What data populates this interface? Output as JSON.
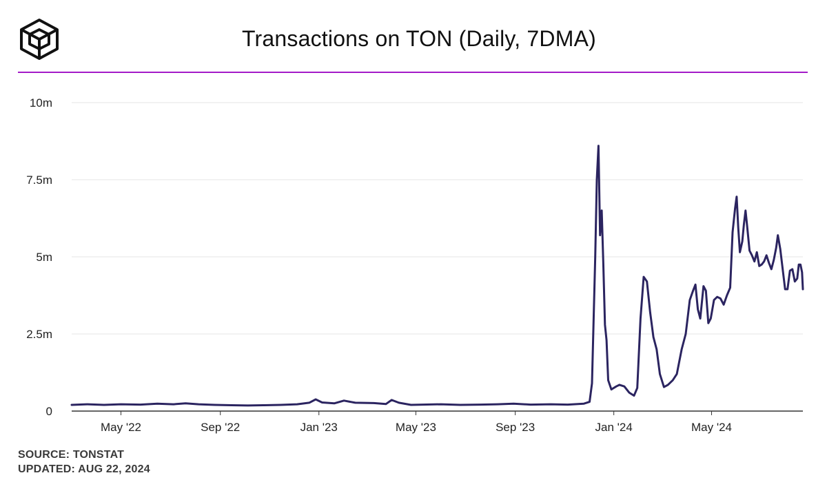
{
  "header": {
    "logo_icon": "cube-outline-icon",
    "title": "Transactions on TON (Daily, 7DMA)",
    "accent_color": "#a31ac8"
  },
  "footer": {
    "source": "SOURCE: TONSTAT",
    "updated": "UPDATED: AUG 22, 2024"
  },
  "chart_data": {
    "type": "line",
    "title": "Transactions on TON (Daily, 7DMA)",
    "xlabel": "",
    "ylabel": "",
    "xlim": [
      "2022-03-01",
      "2024-08-22"
    ],
    "ylim": [
      0,
      10
    ],
    "y_unit": "m",
    "y_ticks": [
      {
        "value": 0,
        "label": "0"
      },
      {
        "value": 2.5,
        "label": "2.5m"
      },
      {
        "value": 5,
        "label": "5m"
      },
      {
        "value": 7.5,
        "label": "7.5m"
      },
      {
        "value": 10,
        "label": "10m"
      }
    ],
    "x_ticks": [
      {
        "date": "2022-05-01",
        "label": "May '22"
      },
      {
        "date": "2022-09-01",
        "label": "Sep '22"
      },
      {
        "date": "2023-01-01",
        "label": "Jan '23"
      },
      {
        "date": "2023-05-01",
        "label": "May '23"
      },
      {
        "date": "2023-09-01",
        "label": "Sep '23"
      },
      {
        "date": "2024-01-01",
        "label": "Jan '24"
      },
      {
        "date": "2024-05-01",
        "label": "May '24"
      }
    ],
    "grid": "horizontal",
    "line_color": "#2b2460",
    "series": [
      {
        "points": [
          [
            "2022-03-01",
            0.2
          ],
          [
            "2022-03-20",
            0.22
          ],
          [
            "2022-04-10",
            0.2
          ],
          [
            "2022-05-01",
            0.22
          ],
          [
            "2022-05-25",
            0.21
          ],
          [
            "2022-06-15",
            0.24
          ],
          [
            "2022-07-05",
            0.22
          ],
          [
            "2022-07-20",
            0.25
          ],
          [
            "2022-08-05",
            0.22
          ],
          [
            "2022-08-25",
            0.2
          ],
          [
            "2022-09-15",
            0.19
          ],
          [
            "2022-10-05",
            0.18
          ],
          [
            "2022-10-25",
            0.19
          ],
          [
            "2022-11-15",
            0.2
          ],
          [
            "2022-12-05",
            0.22
          ],
          [
            "2022-12-20",
            0.27
          ],
          [
            "2022-12-28",
            0.38
          ],
          [
            "2023-01-05",
            0.28
          ],
          [
            "2023-01-20",
            0.25
          ],
          [
            "2023-02-01",
            0.34
          ],
          [
            "2023-02-15",
            0.27
          ],
          [
            "2023-03-10",
            0.26
          ],
          [
            "2023-03-25",
            0.23
          ],
          [
            "2023-04-01",
            0.36
          ],
          [
            "2023-04-10",
            0.27
          ],
          [
            "2023-04-25",
            0.2
          ],
          [
            "2023-05-10",
            0.21
          ],
          [
            "2023-06-01",
            0.22
          ],
          [
            "2023-06-25",
            0.2
          ],
          [
            "2023-07-20",
            0.21
          ],
          [
            "2023-08-10",
            0.22
          ],
          [
            "2023-08-30",
            0.24
          ],
          [
            "2023-09-20",
            0.21
          ],
          [
            "2023-10-15",
            0.22
          ],
          [
            "2023-11-05",
            0.21
          ],
          [
            "2023-11-25",
            0.24
          ],
          [
            "2023-12-02",
            0.3
          ],
          [
            "2023-12-05",
            0.9
          ],
          [
            "2023-12-07",
            3.0
          ],
          [
            "2023-12-09",
            5.0
          ],
          [
            "2023-12-11",
            7.5
          ],
          [
            "2023-12-13",
            8.6
          ],
          [
            "2023-12-15",
            5.7
          ],
          [
            "2023-12-17",
            6.5
          ],
          [
            "2023-12-19",
            4.8
          ],
          [
            "2023-12-21",
            2.8
          ],
          [
            "2023-12-23",
            2.3
          ],
          [
            "2023-12-25",
            1.0
          ],
          [
            "2023-12-29",
            0.7
          ],
          [
            "2024-01-04",
            0.8
          ],
          [
            "2024-01-08",
            0.85
          ],
          [
            "2024-01-14",
            0.8
          ],
          [
            "2024-01-20",
            0.6
          ],
          [
            "2024-01-26",
            0.5
          ],
          [
            "2024-01-30",
            0.75
          ],
          [
            "2024-02-03",
            3.0
          ],
          [
            "2024-02-07",
            4.35
          ],
          [
            "2024-02-11",
            4.2
          ],
          [
            "2024-02-15",
            3.2
          ],
          [
            "2024-02-19",
            2.4
          ],
          [
            "2024-02-23",
            2.0
          ],
          [
            "2024-02-27",
            1.2
          ],
          [
            "2024-03-03",
            0.78
          ],
          [
            "2024-03-08",
            0.85
          ],
          [
            "2024-03-14",
            1.0
          ],
          [
            "2024-03-19",
            1.2
          ],
          [
            "2024-03-25",
            2.0
          ],
          [
            "2024-03-30",
            2.5
          ],
          [
            "2024-04-04",
            3.6
          ],
          [
            "2024-04-08",
            3.9
          ],
          [
            "2024-04-11",
            4.1
          ],
          [
            "2024-04-14",
            3.3
          ],
          [
            "2024-04-17",
            3.0
          ],
          [
            "2024-04-21",
            4.05
          ],
          [
            "2024-04-24",
            3.9
          ],
          [
            "2024-04-27",
            2.85
          ],
          [
            "2024-04-30",
            3.0
          ],
          [
            "2024-05-04",
            3.6
          ],
          [
            "2024-05-08",
            3.7
          ],
          [
            "2024-05-12",
            3.65
          ],
          [
            "2024-05-16",
            3.45
          ],
          [
            "2024-05-20",
            3.75
          ],
          [
            "2024-05-24",
            4.0
          ],
          [
            "2024-05-27",
            5.8
          ],
          [
            "2024-05-30",
            6.55
          ],
          [
            "2024-06-01",
            6.95
          ],
          [
            "2024-06-03",
            5.95
          ],
          [
            "2024-06-05",
            5.15
          ],
          [
            "2024-06-08",
            5.5
          ],
          [
            "2024-06-10",
            6.05
          ],
          [
            "2024-06-12",
            6.5
          ],
          [
            "2024-06-14",
            6.0
          ],
          [
            "2024-06-17",
            5.2
          ],
          [
            "2024-06-20",
            5.05
          ],
          [
            "2024-06-23",
            4.85
          ],
          [
            "2024-06-26",
            5.15
          ],
          [
            "2024-06-29",
            4.7
          ],
          [
            "2024-07-02",
            4.75
          ],
          [
            "2024-07-05",
            4.85
          ],
          [
            "2024-07-08",
            5.05
          ],
          [
            "2024-07-11",
            4.8
          ],
          [
            "2024-07-14",
            4.6
          ],
          [
            "2024-07-17",
            4.9
          ],
          [
            "2024-07-20",
            5.3
          ],
          [
            "2024-07-22",
            5.7
          ],
          [
            "2024-07-25",
            5.25
          ],
          [
            "2024-07-28",
            4.6
          ],
          [
            "2024-07-31",
            3.95
          ],
          [
            "2024-08-03",
            3.95
          ],
          [
            "2024-08-06",
            4.55
          ],
          [
            "2024-08-09",
            4.6
          ],
          [
            "2024-08-12",
            4.2
          ],
          [
            "2024-08-15",
            4.3
          ],
          [
            "2024-08-17",
            4.75
          ],
          [
            "2024-08-19",
            4.75
          ],
          [
            "2024-08-21",
            4.5
          ],
          [
            "2024-08-22",
            3.95
          ]
        ]
      }
    ]
  }
}
